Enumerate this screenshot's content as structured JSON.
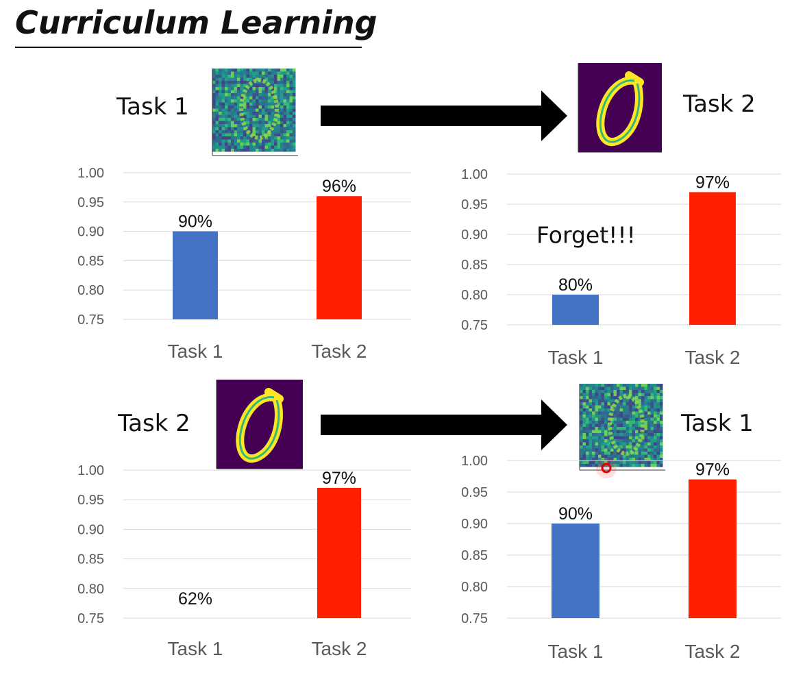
{
  "title": "Curriculum Learning",
  "arrows": [
    {
      "from": "Task 1",
      "to": "Task 2"
    },
    {
      "from": "Task 2",
      "to": "Task 1"
    }
  ],
  "images": [
    {
      "name": "noisy-digit-zero",
      "description_label": "Task 1"
    },
    {
      "name": "clean-digit-zero",
      "description_label": "Task 2"
    }
  ],
  "colors": {
    "task1_bar": "#4472C4",
    "task2_bar": "#FF2000",
    "grid": "#D9D9D9",
    "axis_text": "#595959"
  },
  "chart_data": [
    {
      "type": "bar",
      "categories": [
        "Task 1",
        "Task 2"
      ],
      "values": [
        0.9,
        0.96
      ],
      "data_labels": [
        "90%",
        "96%"
      ],
      "ylim": [
        0.75,
        1.0
      ],
      "yticks": [
        "1.00",
        "0.95",
        "0.90",
        "0.85",
        "0.80",
        "0.75"
      ],
      "annotation": "",
      "grid": true
    },
    {
      "type": "bar",
      "categories": [
        "Task 1",
        "Task 2"
      ],
      "values": [
        0.8,
        0.97
      ],
      "data_labels": [
        "80%",
        "97%"
      ],
      "ylim": [
        0.75,
        1.0
      ],
      "yticks": [
        "1.00",
        "0.95",
        "0.90",
        "0.85",
        "0.80",
        "0.75"
      ],
      "annotation": "Forget!!!",
      "grid": true
    },
    {
      "type": "bar",
      "categories": [
        "Task 1",
        "Task 2"
      ],
      "values": [
        0.62,
        0.97
      ],
      "data_labels": [
        "62%",
        "97%"
      ],
      "ylim": [
        0.75,
        1.0
      ],
      "yticks": [
        "1.00",
        "0.95",
        "0.90",
        "0.85",
        "0.80",
        "0.75"
      ],
      "annotation": "",
      "grid": true
    },
    {
      "type": "bar",
      "categories": [
        "Task 1",
        "Task 2"
      ],
      "values": [
        0.9,
        0.97
      ],
      "data_labels": [
        "90%",
        "97%"
      ],
      "ylim": [
        0.75,
        1.0
      ],
      "yticks": [
        "1.00",
        "0.95",
        "0.90",
        "0.85",
        "0.80",
        "0.75"
      ],
      "annotation": "",
      "grid": true
    }
  ]
}
